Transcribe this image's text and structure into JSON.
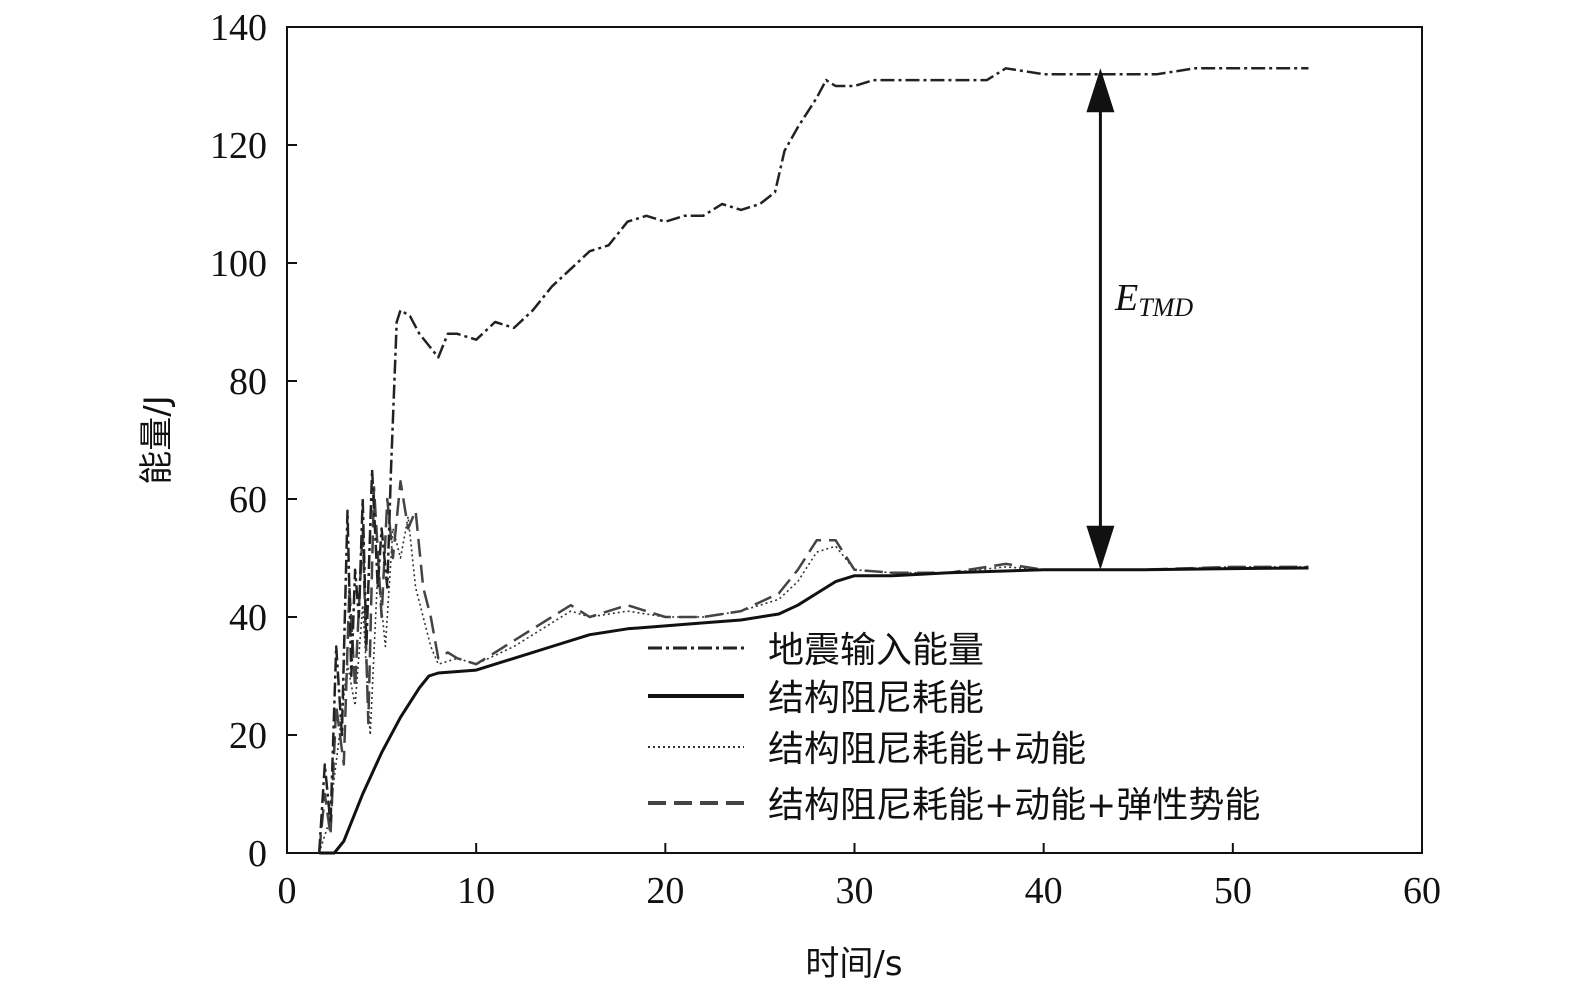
{
  "chart_data": {
    "type": "line",
    "title": "",
    "xlabel": "时间/s",
    "ylabel": "能量/J",
    "xlim": [
      0,
      60
    ],
    "ylim": [
      0,
      140
    ],
    "xticks": [
      0,
      10,
      20,
      30,
      40,
      50,
      60
    ],
    "yticks": [
      0,
      20,
      40,
      60,
      80,
      100,
      120,
      140
    ],
    "grid": false,
    "legend_position": "bottom-right",
    "annotation": {
      "label": "E",
      "subscript": "TMD",
      "x": 43,
      "from": 48,
      "to": 133
    },
    "series": [
      {
        "name": "地震输入能量",
        "style": "dashdot",
        "color": "#222222",
        "x": [
          1.7,
          2.0,
          2.3,
          2.6,
          2.9,
          3.2,
          3.4,
          3.6,
          3.8,
          4.0,
          4.2,
          4.5,
          4.8,
          5.0,
          5.3,
          5.5,
          5.8,
          6.0,
          6.5,
          7.0,
          7.5,
          8.0,
          8.5,
          9.0,
          10.0,
          11.0,
          12.0,
          13.0,
          14.0,
          15.0,
          16.0,
          17.0,
          18.0,
          19.0,
          20.0,
          21.0,
          22.0,
          23.0,
          24.0,
          25.0,
          25.8,
          26.3,
          27.0,
          28.0,
          28.5,
          29.0,
          30.0,
          31.0,
          33.0,
          35.0,
          37.0,
          38.0,
          40.0,
          43.0,
          46.0,
          48.0,
          50.0,
          54.0
        ],
        "y": [
          0,
          15,
          5,
          35,
          20,
          58,
          30,
          48,
          40,
          60,
          35,
          65,
          45,
          55,
          45,
          65,
          90,
          92,
          91,
          88,
          86,
          84,
          88,
          88,
          87,
          90,
          89,
          92,
          96,
          99,
          102,
          103,
          107,
          108,
          107,
          108,
          108,
          110,
          109,
          110,
          112,
          119,
          123,
          128,
          131,
          130,
          130,
          131,
          131,
          131,
          131,
          133,
          132,
          132,
          132,
          133,
          133,
          133
        ]
      },
      {
        "name": "结构阻尼耗能",
        "style": "solid",
        "color": "#111111",
        "x": [
          1.7,
          2.5,
          3.0,
          4.0,
          5.0,
          6.0,
          7.0,
          7.5,
          8.0,
          10.0,
          12.0,
          14.0,
          16.0,
          18.0,
          20.0,
          22.0,
          24.0,
          26.0,
          27.0,
          28.0,
          29.0,
          30.0,
          32.0,
          35.0,
          40.0,
          45.0,
          50.0,
          54.0
        ],
        "y": [
          0,
          0,
          2,
          10,
          17,
          23,
          28,
          30,
          30.5,
          31,
          33,
          35,
          37,
          38,
          38.5,
          39,
          39.5,
          40.5,
          42,
          44,
          46,
          47,
          47,
          47.5,
          48,
          48,
          48.2,
          48.3
        ]
      },
      {
        "name": "结构阻尼耗能+动能",
        "style": "dotted",
        "color": "#333333",
        "x": [
          1.7,
          2.2,
          2.7,
          3.2,
          3.6,
          4.0,
          4.4,
          4.8,
          5.2,
          5.6,
          6.0,
          6.4,
          6.8,
          7.2,
          7.6,
          8.0,
          9.0,
          10.0,
          12.0,
          14.0,
          15.0,
          16.0,
          18.0,
          20.0,
          22.0,
          24.0,
          26.0,
          27.0,
          28.0,
          29.0,
          30.0,
          32.0,
          35.0,
          38.0,
          40.0,
          45.0,
          50.0,
          54.0
        ],
        "y": [
          0,
          5,
          18,
          32,
          25,
          42,
          20,
          48,
          35,
          55,
          50,
          57,
          45,
          40,
          35,
          32,
          33,
          32,
          35,
          39,
          41,
          40,
          41,
          40,
          40,
          41,
          43,
          46,
          51,
          52,
          48,
          47.5,
          47.5,
          48.5,
          48,
          48,
          48.5,
          48.5
        ]
      },
      {
        "name": "结构阻尼耗能+动能+弹性势能",
        "style": "dashed",
        "color": "#444444",
        "x": [
          1.7,
          2.0,
          2.3,
          2.6,
          3.0,
          3.3,
          3.6,
          4.0,
          4.3,
          4.6,
          5.0,
          5.3,
          5.6,
          6.0,
          6.4,
          6.8,
          7.2,
          7.6,
          8.0,
          8.5,
          9.0,
          10.0,
          12.0,
          14.0,
          15.0,
          16.0,
          18.0,
          20.0,
          22.0,
          24.0,
          26.0,
          27.0,
          28.0,
          29.0,
          30.0,
          32.0,
          35.0,
          38.0,
          40.0,
          45.0,
          50.0,
          54.0
        ],
        "y": [
          0,
          10,
          3,
          25,
          15,
          45,
          28,
          55,
          22,
          62,
          40,
          60,
          50,
          63,
          55,
          58,
          45,
          40,
          33,
          34,
          33,
          32,
          36,
          40,
          42,
          40,
          42,
          40,
          40,
          41,
          44,
          48,
          53,
          53,
          48,
          47.5,
          47.5,
          49,
          48,
          48,
          48.5,
          48.5
        ]
      }
    ]
  }
}
